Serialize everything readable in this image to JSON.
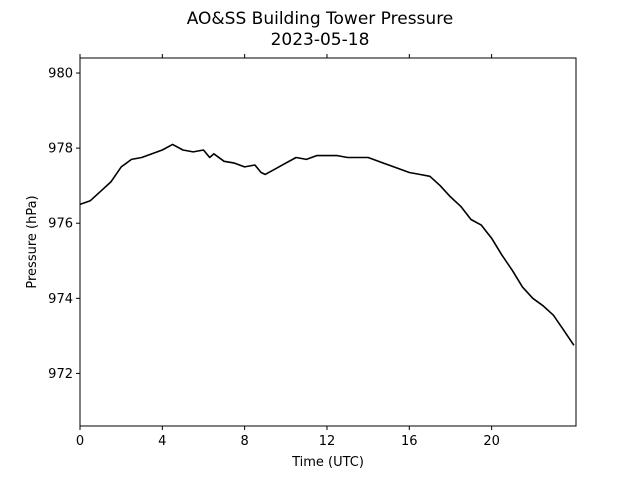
{
  "chart_data": {
    "type": "line",
    "title": "AO&SS Building Tower Pressure",
    "subtitle": "2023-05-18",
    "xlabel": "Time (UTC)",
    "ylabel": "Pressure (hPa)",
    "xlim": [
      0,
      24.1
    ],
    "ylim": [
      970.6,
      980.4
    ],
    "xticks": [
      0,
      4,
      8,
      12,
      16,
      20
    ],
    "xtick_labels": [
      "0",
      "4",
      "8",
      "12",
      "16",
      "20"
    ],
    "yticks": [
      972,
      974,
      976,
      978,
      980
    ],
    "ytick_labels": [
      "972",
      "974",
      "976",
      "978",
      "980"
    ],
    "grid": false,
    "legend": "none",
    "line_color": "#000000",
    "series": [
      {
        "x": [
          0,
          0.5,
          1.0,
          1.5,
          2.0,
          2.5,
          3.0,
          3.5,
          4.0,
          4.5,
          5.0,
          5.5,
          6.0,
          6.3,
          6.5,
          7.0,
          7.5,
          8.0,
          8.5,
          8.8,
          9.0,
          9.5,
          10.0,
          10.5,
          11.0,
          11.5,
          12.0,
          12.5,
          13.0,
          13.5,
          14.0,
          14.5,
          15.0,
          15.5,
          16.0,
          16.5,
          17.0,
          17.5,
          18.0,
          18.5,
          19.0,
          19.5,
          20.0,
          20.5,
          21.0,
          21.5,
          22.0,
          22.5,
          23.0,
          23.5,
          24.0
        ],
        "y": [
          976.5,
          976.6,
          976.85,
          977.1,
          977.5,
          977.7,
          977.75,
          977.85,
          977.95,
          978.1,
          977.95,
          977.9,
          977.95,
          977.75,
          977.85,
          977.65,
          977.6,
          977.5,
          977.55,
          977.35,
          977.3,
          977.45,
          977.6,
          977.75,
          977.7,
          977.8,
          977.8,
          977.8,
          977.75,
          977.75,
          977.75,
          977.65,
          977.55,
          977.45,
          977.35,
          977.3,
          977.25,
          977.0,
          976.7,
          976.45,
          976.1,
          975.95,
          975.6,
          975.15,
          974.75,
          974.3,
          974.0,
          973.8,
          973.55,
          973.15,
          972.75
        ]
      }
    ]
  }
}
